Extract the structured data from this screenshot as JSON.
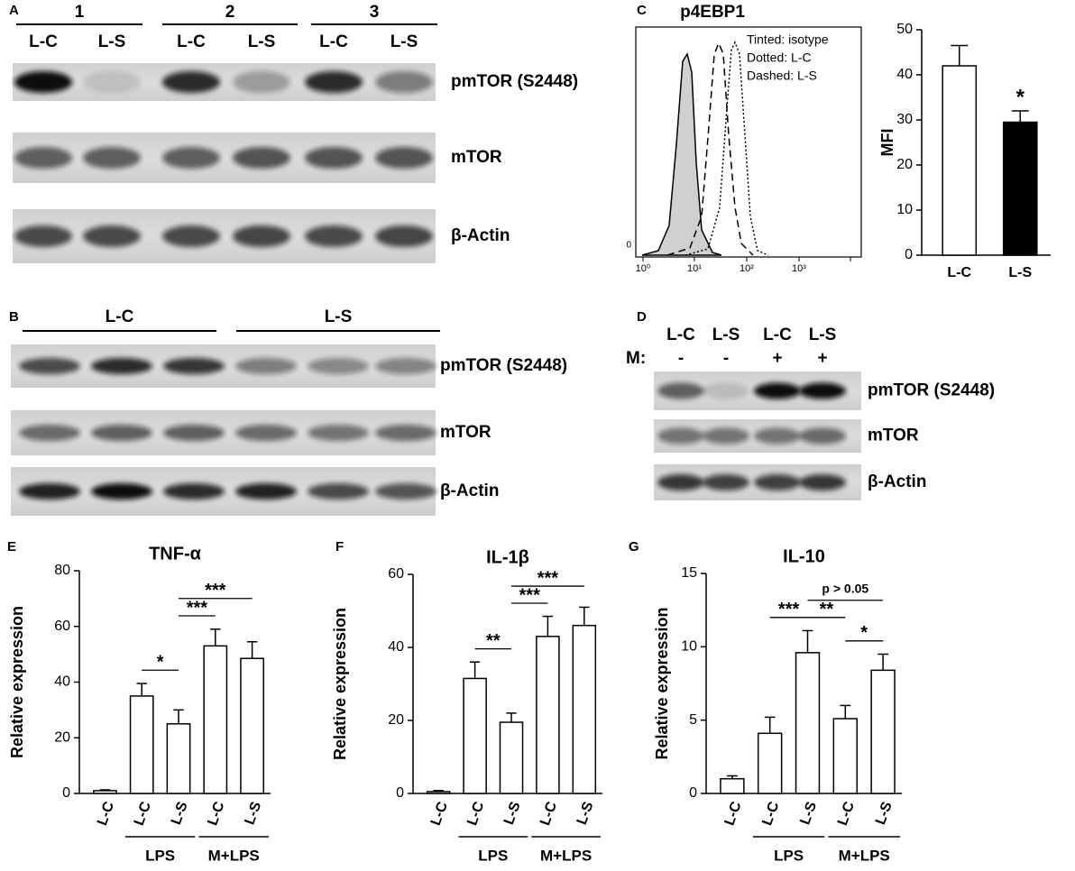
{
  "panel_letters": [
    "A",
    "B",
    "C",
    "D",
    "E",
    "F",
    "G"
  ],
  "blot_a": {
    "groups": [
      "1",
      "2",
      "3"
    ],
    "lanes": [
      "L-C",
      "L-S",
      "L-C",
      "L-S",
      "L-C",
      "L-S"
    ],
    "bands": [
      "pmTOR (S2448)",
      "mTOR",
      "β-Actin"
    ]
  },
  "blot_b": {
    "groups": [
      "L-C",
      "L-S"
    ],
    "bands": [
      "pmTOR (S2448)",
      "mTOR",
      "β-Actin"
    ]
  },
  "blot_d": {
    "lanes": [
      "L-C",
      "L-S",
      "L-C",
      "L-S"
    ],
    "treatment_label": "M:",
    "treatment": [
      "-",
      "-",
      "+",
      "+"
    ],
    "bands": [
      "pmTOR (S2448)",
      "mTOR",
      "β-Actin"
    ]
  },
  "flow": {
    "title": "p4EBP1",
    "legend": [
      "Tinted: isotype",
      "Dotted: L-C",
      "Dashed: L-S"
    ],
    "y_tick": "0",
    "x_ticks": [
      "10⁰",
      "10¹",
      "10²",
      "10³"
    ]
  },
  "chart_data": [
    {
      "type": "bar",
      "y_label": "MFI",
      "categories": [
        "L-C",
        "L-S"
      ],
      "values": [
        42,
        29.5
      ],
      "errors": [
        4.5,
        2.5
      ],
      "colors": [
        "#ffffff",
        "#000000"
      ],
      "ylim": [
        0,
        50
      ],
      "yticks": [
        0,
        10,
        20,
        30,
        40,
        50
      ],
      "annotations": [
        {
          "text": "*",
          "index": 1
        }
      ]
    },
    {
      "type": "bar",
      "title": "TNF-α",
      "y_label": "Relative expression",
      "categories": [
        "L-C",
        "L-C",
        "L-S",
        "L-C",
        "L-S"
      ],
      "values": [
        1,
        35,
        25,
        53,
        48.5
      ],
      "errors": [
        0.3,
        4.5,
        5,
        6,
        6
      ],
      "colors": [
        "#ffffff",
        "#ffffff",
        "#ffffff",
        "#ffffff",
        "#ffffff"
      ],
      "ylim": [
        0,
        80
      ],
      "yticks": [
        0,
        20,
        40,
        60,
        80
      ],
      "groups": [
        {
          "label": "LPS",
          "from": 1,
          "to": 2
        },
        {
          "label": "M+LPS",
          "from": 3,
          "to": 4
        }
      ],
      "significance": [
        {
          "label": "*",
          "from": 1,
          "to": 2
        },
        {
          "label": "***",
          "from": 2,
          "to": 3
        },
        {
          "label": "***",
          "from": 2,
          "to": 4
        }
      ]
    },
    {
      "type": "bar",
      "title": "IL-1β",
      "y_label": "Relative expression",
      "categories": [
        "L-C",
        "L-C",
        "L-S",
        "L-C",
        "L-S"
      ],
      "values": [
        0.5,
        31.5,
        19.5,
        43,
        46
      ],
      "errors": [
        0.3,
        4.5,
        2.5,
        5.5,
        5
      ],
      "colors": [
        "#ffffff",
        "#ffffff",
        "#ffffff",
        "#ffffff",
        "#ffffff"
      ],
      "ylim": [
        0,
        60
      ],
      "yticks": [
        0,
        20,
        40,
        60
      ],
      "groups": [
        {
          "label": "LPS",
          "from": 1,
          "to": 2
        },
        {
          "label": "M+LPS",
          "from": 3,
          "to": 4
        }
      ],
      "significance": [
        {
          "label": "**",
          "from": 1,
          "to": 2
        },
        {
          "label": "***",
          "from": 2,
          "to": 3
        },
        {
          "label": "***",
          "from": 2,
          "to": 4
        }
      ]
    },
    {
      "type": "bar",
      "title": "IL-10",
      "y_label": "Relative expression",
      "categories": [
        "L-C",
        "L-C",
        "L-S",
        "L-C",
        "L-S"
      ],
      "values": [
        1,
        4.1,
        9.6,
        5.1,
        8.4
      ],
      "errors": [
        0.2,
        1.1,
        1.5,
        0.9,
        1.1
      ],
      "colors": [
        "#ffffff",
        "#ffffff",
        "#ffffff",
        "#ffffff",
        "#ffffff"
      ],
      "ylim": [
        0,
        15
      ],
      "yticks": [
        0,
        5,
        10,
        15
      ],
      "groups": [
        {
          "label": "LPS",
          "from": 1,
          "to": 2
        },
        {
          "label": "M+LPS",
          "from": 3,
          "to": 4
        }
      ],
      "significance": [
        {
          "label": "***",
          "from": 1,
          "to": 2
        },
        {
          "label": "**",
          "from": 2,
          "to": 3
        },
        {
          "label": "*",
          "from": 3,
          "to": 4
        },
        {
          "label": "p > 0.05",
          "from": 2,
          "to": 4
        }
      ]
    }
  ]
}
